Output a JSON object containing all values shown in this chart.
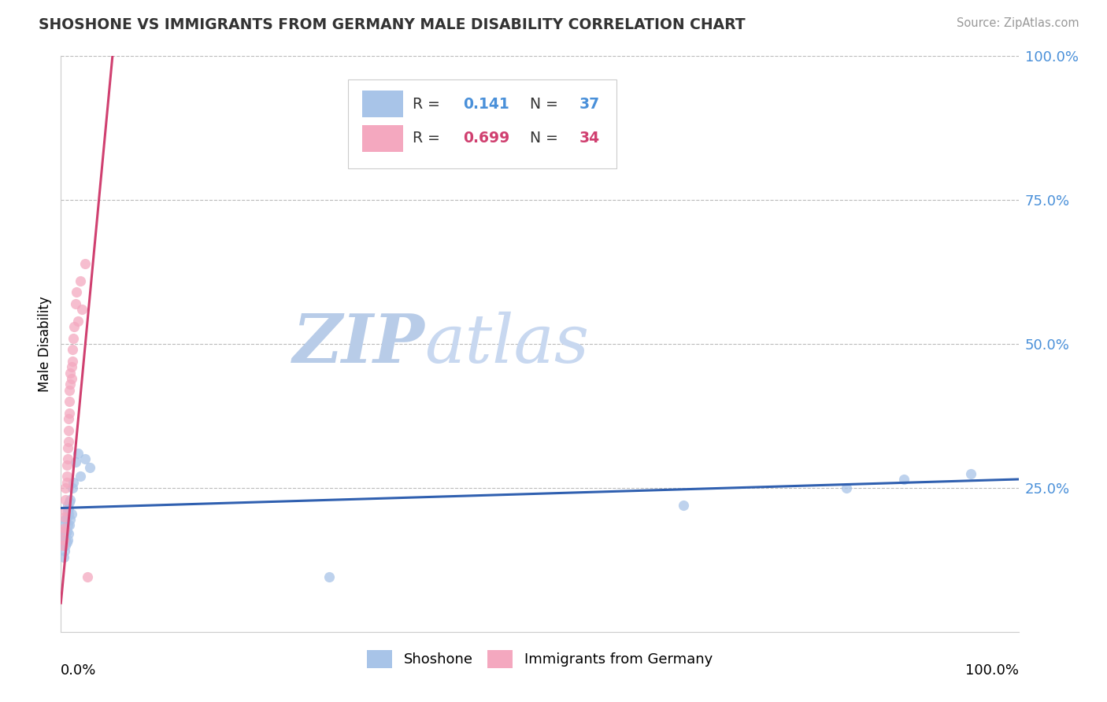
{
  "title": "SHOSHONE VS IMMIGRANTS FROM GERMANY MALE DISABILITY CORRELATION CHART",
  "source": "Source: ZipAtlas.com",
  "ylabel": "Male Disability",
  "xlim": [
    0.0,
    1.0
  ],
  "ylim": [
    0.0,
    1.0
  ],
  "shoshone_R": 0.141,
  "shoshone_N": 37,
  "germany_R": 0.699,
  "germany_N": 34,
  "shoshone_color": "#a8c4e8",
  "germany_color": "#f4a8bf",
  "shoshone_line_color": "#3060b0",
  "germany_line_color": "#d04070",
  "watermark_zip_color": "#b8cce8",
  "watermark_atlas_color": "#c8d8f0",
  "background_color": "#ffffff",
  "grid_color": "#bbbbbb",
  "title_color": "#333333",
  "source_color": "#999999",
  "right_axis_color": "#4a90d9",
  "shoshone_x": [
    0.002,
    0.003,
    0.003,
    0.004,
    0.004,
    0.004,
    0.005,
    0.005,
    0.005,
    0.005,
    0.006,
    0.006,
    0.006,
    0.007,
    0.007,
    0.007,
    0.007,
    0.008,
    0.008,
    0.008,
    0.009,
    0.009,
    0.01,
    0.01,
    0.011,
    0.012,
    0.013,
    0.015,
    0.018,
    0.02,
    0.025,
    0.03,
    0.28,
    0.65,
    0.82,
    0.88,
    0.95
  ],
  "shoshone_y": [
    0.155,
    0.13,
    0.165,
    0.14,
    0.175,
    0.185,
    0.15,
    0.16,
    0.17,
    0.195,
    0.155,
    0.175,
    0.2,
    0.16,
    0.185,
    0.21,
    0.22,
    0.17,
    0.205,
    0.215,
    0.185,
    0.225,
    0.195,
    0.23,
    0.205,
    0.25,
    0.26,
    0.295,
    0.31,
    0.27,
    0.3,
    0.285,
    0.095,
    0.22,
    0.25,
    0.265,
    0.275
  ],
  "germany_x": [
    0.002,
    0.003,
    0.003,
    0.004,
    0.004,
    0.005,
    0.005,
    0.005,
    0.006,
    0.006,
    0.006,
    0.007,
    0.007,
    0.008,
    0.008,
    0.008,
    0.009,
    0.009,
    0.009,
    0.01,
    0.01,
    0.011,
    0.011,
    0.012,
    0.012,
    0.013,
    0.014,
    0.015,
    0.016,
    0.018,
    0.02,
    0.022,
    0.025,
    0.028
  ],
  "germany_y": [
    0.15,
    0.16,
    0.175,
    0.18,
    0.2,
    0.21,
    0.23,
    0.25,
    0.26,
    0.27,
    0.29,
    0.3,
    0.32,
    0.33,
    0.35,
    0.37,
    0.38,
    0.4,
    0.42,
    0.43,
    0.45,
    0.44,
    0.46,
    0.49,
    0.47,
    0.51,
    0.53,
    0.57,
    0.59,
    0.54,
    0.61,
    0.56,
    0.64,
    0.095
  ],
  "germany_line_x": [
    0.0,
    0.055
  ],
  "germany_line_y_start": 0.05,
  "germany_line_y_end": 1.02,
  "shoshone_line_x": [
    0.0,
    1.0
  ],
  "shoshone_line_y_start": 0.215,
  "shoshone_line_y_end": 0.265
}
